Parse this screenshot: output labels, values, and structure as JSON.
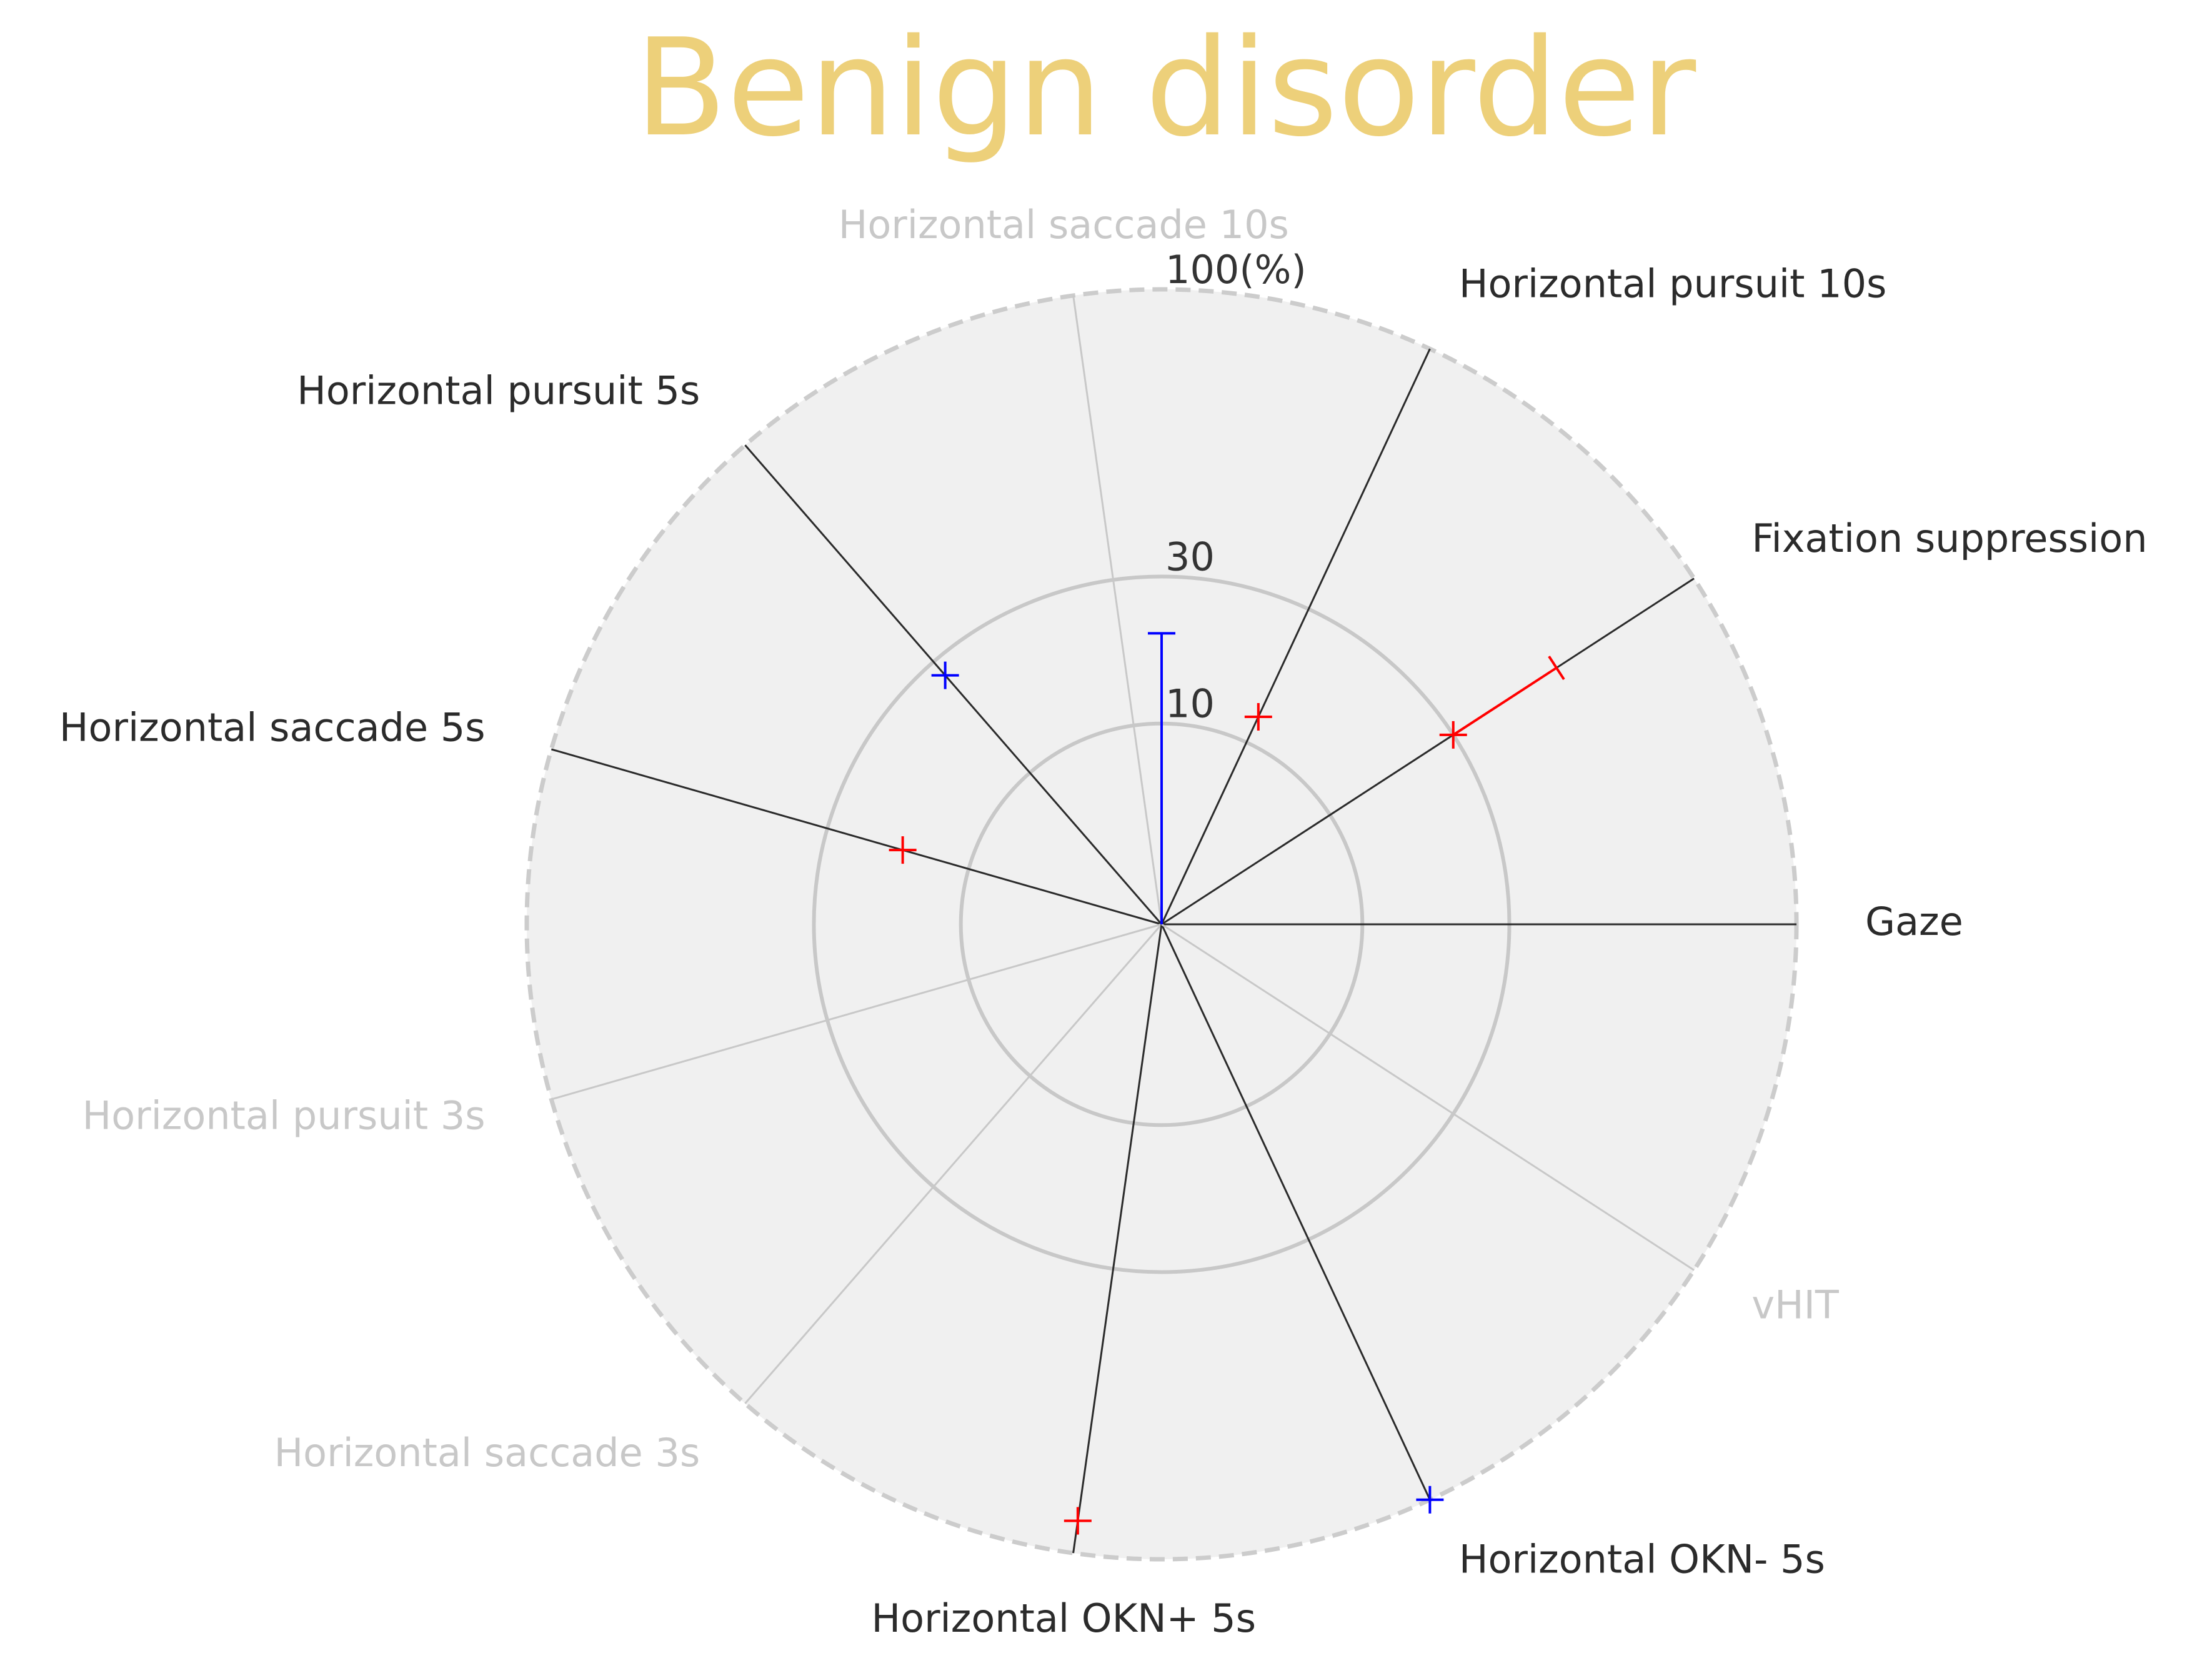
{
  "chart_data": {
    "type": "radar",
    "title": "Benign disorder",
    "title_color": "#EDD07A",
    "r_ticks": [
      "10",
      "30",
      "100(%)"
    ],
    "r_tick_values": [
      10,
      30,
      100
    ],
    "grid_rings": "solid at 10 and 30, dashed outer boundary at 100",
    "axes": [
      {
        "label": "Gaze",
        "angle_deg": 0,
        "active": true
      },
      {
        "label": "Fixation suppression",
        "angle_deg": 33,
        "active": true
      },
      {
        "label": "Horizontal pursuit 10s",
        "angle_deg": 65,
        "active": true
      },
      {
        "label": "Horizontal saccade 10s",
        "angle_deg": 98,
        "active": false
      },
      {
        "label": "Horizontal pursuit 5s",
        "angle_deg": 131,
        "active": true
      },
      {
        "label": "Horizontal saccade 5s",
        "angle_deg": 164,
        "active": true
      },
      {
        "label": "Horizontal pursuit 3s",
        "angle_deg": 196,
        "active": false
      },
      {
        "label": "Horizontal saccade 3s",
        "angle_deg": 229,
        "active": false
      },
      {
        "label": "Horizontal OKN+ 5s",
        "angle_deg": 262,
        "active": true
      },
      {
        "label": "Horizontal OKN- 5s",
        "angle_deg": 295,
        "active": true
      },
      {
        "label": "vHIT",
        "angle_deg": 327,
        "active": false
      }
    ],
    "series": [
      {
        "color": "#FF0000",
        "points": [
          {
            "axis": "Fixation suppression",
            "value": 30,
            "error_upper": 55
          },
          {
            "axis": "Horizontal pursuit 10s",
            "value": 13
          },
          {
            "axis": "Horizontal saccade 5s",
            "value": 18
          },
          {
            "axis": "Horizontal OKN+ 5s",
            "value": 90
          }
        ]
      },
      {
        "color": "#0000FF",
        "points": [
          {
            "axis": "Horizontal pursuit 5s",
            "value": 27
          },
          {
            "axis": "Horizontal OKN- 5s",
            "value": 100
          },
          {
            "axis": "Center",
            "angle_deg": 90,
            "value": 0,
            "error_upper": 21
          }
        ]
      }
    ],
    "active_label_color": "#2b2b2b",
    "inactive_label_color": "#c8c8c8",
    "background_color": "#F0F0F0"
  }
}
